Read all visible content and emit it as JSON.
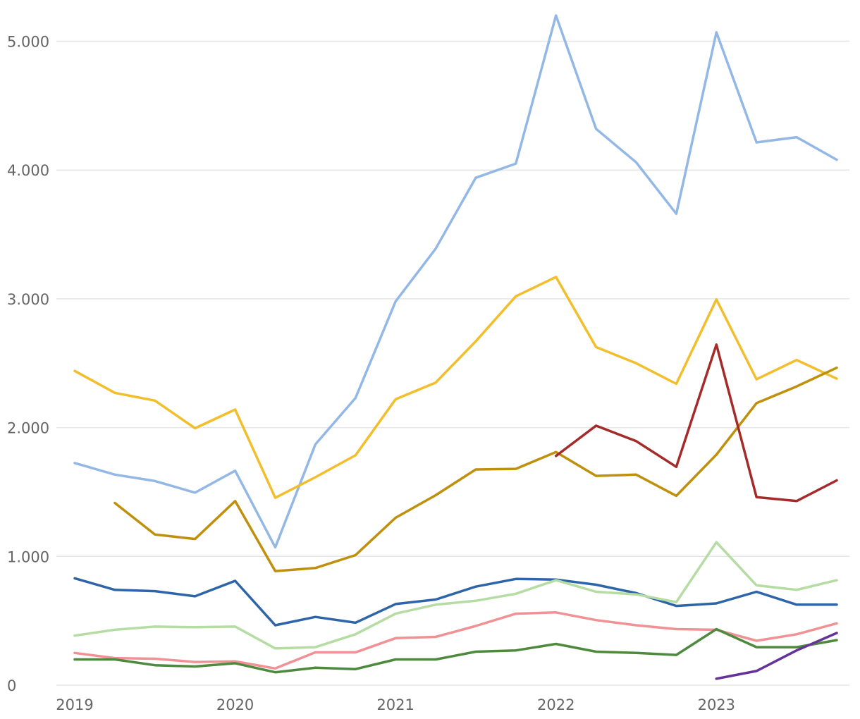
{
  "chart_data": {
    "type": "line",
    "title": "",
    "xlabel": "",
    "ylabel": "",
    "xlim": [
      2019.0,
      2023.75
    ],
    "ylim": [
      0,
      5200
    ],
    "grid": true,
    "x_ticks": [
      {
        "value": 2019,
        "label": "2019"
      },
      {
        "value": 2020,
        "label": "2020"
      },
      {
        "value": 2021,
        "label": "2021"
      },
      {
        "value": 2022,
        "label": "2022"
      },
      {
        "value": 2023,
        "label": "2023"
      }
    ],
    "y_ticks": [
      {
        "value": 0,
        "label": "0"
      },
      {
        "value": 1000,
        "label": "1.000"
      },
      {
        "value": 2000,
        "label": "2.000"
      },
      {
        "value": 3000,
        "label": "3.000"
      },
      {
        "value": 4000,
        "label": "4.000"
      },
      {
        "value": 5000,
        "label": "5.000"
      }
    ],
    "x": [
      2019.0,
      2019.25,
      2019.5,
      2019.75,
      2020.0,
      2020.25,
      2020.5,
      2020.75,
      2021.0,
      2021.25,
      2021.5,
      2021.75,
      2022.0,
      2022.25,
      2022.5,
      2022.75,
      2023.0,
      2023.25,
      2023.5,
      2023.75
    ],
    "series": [
      {
        "color": "#93b8e6",
        "values": [
          1725,
          1635,
          1585,
          1495,
          1665,
          1070,
          1870,
          2230,
          2980,
          3390,
          3940,
          4050,
          5200,
          4320,
          4060,
          3660,
          5070,
          4215,
          4255,
          4080
        ]
      },
      {
        "color": "#f2be2c",
        "values": [
          2440,
          2270,
          2210,
          1995,
          2140,
          1455,
          1615,
          1785,
          2220,
          2350,
          2670,
          3020,
          3170,
          2625,
          2500,
          2340,
          2995,
          2375,
          2525,
          2380
        ]
      },
      {
        "color": "#bf900c",
        "values": [
          null,
          1415,
          1170,
          1135,
          1430,
          885,
          910,
          1010,
          1300,
          1475,
          1675,
          1680,
          1810,
          1625,
          1635,
          1470,
          1790,
          2190,
          2320,
          2465
        ]
      },
      {
        "color": "#a52a2a",
        "values": [
          null,
          null,
          null,
          null,
          null,
          null,
          null,
          null,
          null,
          null,
          null,
          null,
          1780,
          2015,
          1895,
          1695,
          2645,
          1460,
          1430,
          1590
        ]
      },
      {
        "color": "#2e64a8",
        "values": [
          830,
          740,
          730,
          690,
          810,
          465,
          530,
          485,
          630,
          665,
          765,
          825,
          820,
          780,
          715,
          615,
          635,
          725,
          625,
          625
        ]
      },
      {
        "color": "#b5dca2",
        "values": [
          385,
          430,
          455,
          450,
          455,
          285,
          295,
          395,
          555,
          625,
          655,
          710,
          815,
          725,
          705,
          645,
          1110,
          775,
          740,
          815
        ]
      },
      {
        "color": "#f09295",
        "values": [
          250,
          210,
          205,
          180,
          185,
          130,
          255,
          255,
          365,
          375,
          460,
          555,
          565,
          505,
          465,
          435,
          430,
          345,
          395,
          480
        ]
      },
      {
        "color": "#4e8a3e",
        "values": [
          200,
          200,
          155,
          145,
          170,
          100,
          135,
          125,
          200,
          200,
          260,
          270,
          320,
          260,
          250,
          235,
          435,
          295,
          295,
          350
        ]
      },
      {
        "color": "#64339a",
        "values": [
          null,
          null,
          null,
          null,
          null,
          null,
          null,
          null,
          null,
          null,
          null,
          null,
          null,
          null,
          null,
          null,
          50,
          110,
          270,
          405
        ]
      }
    ]
  }
}
